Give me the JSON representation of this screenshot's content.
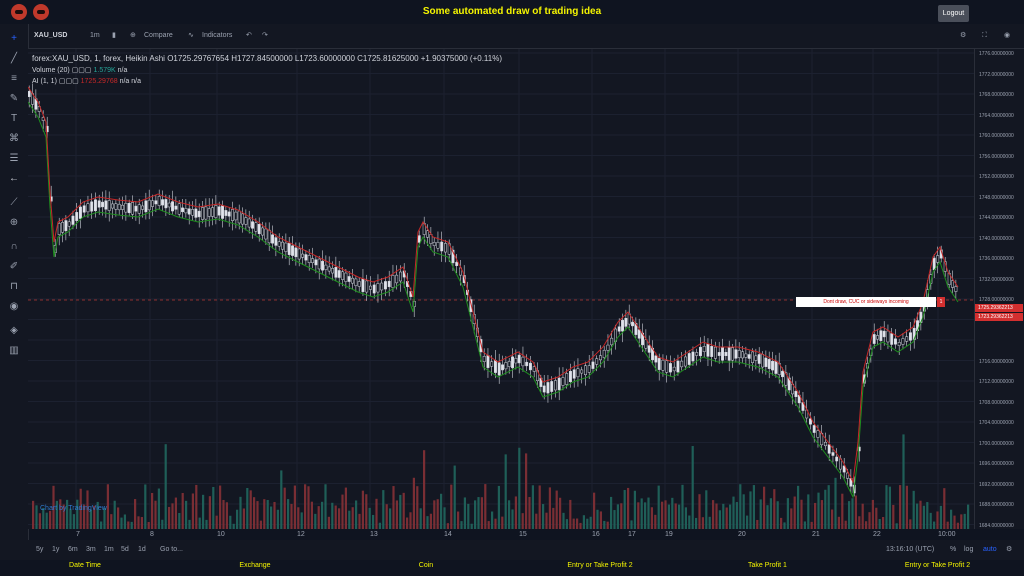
{
  "header": {
    "title": "Some automated draw of trading idea",
    "logout": "Logout"
  },
  "toolbar": {
    "symbol": "XAU_USD",
    "interval": "1m",
    "compare": "Compare",
    "indicators": "Indicators"
  },
  "legend": {
    "line1": "forex:XAU_USD, 1, forex, Heikin Ashi",
    "ohlc": "O1725.29767654  H1727.84500000  L1723.60000000  C1725.81625000  +1.90375000 (+0.11%)",
    "volume": "Volume (20)",
    "volume_val": "1.579K",
    "na": "n/a",
    "ai": "AI (1, 1)",
    "ai_val": "1725.29768"
  },
  "yaxis": {
    "labels": [
      "1776.00000000",
      "1772.00000000",
      "1768.00000000",
      "1764.00000000",
      "1760.00000000",
      "1756.00000000",
      "1752.00000000",
      "1748.00000000",
      "1744.00000000",
      "1740.00000000",
      "1736.00000000",
      "1732.00000000",
      "1728.00000000",
      "1724.09847250",
      "1716.00000000",
      "1712.00000000",
      "1708.00000000",
      "1704.00000000",
      "1700.00000000",
      "1696.00000000",
      "1692.00000000",
      "1688.00000000",
      "1684.00000000",
      "1680.00000000"
    ],
    "price1": "1725.29362213",
    "price2": "1723.29362213"
  },
  "xaxis": {
    "labels": [
      "7",
      "8",
      "9",
      "10",
      "12",
      "13",
      "14",
      "15",
      "16",
      "17",
      "18",
      "19",
      "20",
      "21",
      "22",
      "10:00"
    ]
  },
  "annotation": {
    "text": "Dont draw, CUC or sideways incoming",
    "badge": "1"
  },
  "bottom": {
    "ranges": [
      "5y",
      "1y",
      "6m",
      "3m",
      "1m",
      "5d",
      "1d"
    ],
    "goto": "Go to...",
    "time": "13:16:10 (UTC)",
    "pct": "%",
    "log": "log",
    "auto": "auto"
  },
  "footer": {
    "labels": [
      "Date Time",
      "Exchange",
      "Coin",
      "Entry or Take Profit 2",
      "Take Profit 1",
      "Entry or Take Profit 2"
    ]
  },
  "tv_logo": "Chart by TradingView",
  "colors": {
    "up": "#26a69a",
    "down": "#ef5350",
    "accent": "#f5f500",
    "ma_up": "#1e8f1e",
    "ma_down": "#c62828"
  }
}
